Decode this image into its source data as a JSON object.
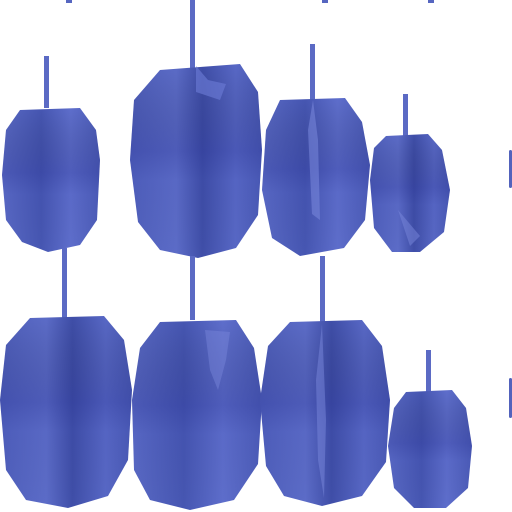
{
  "scene": {
    "background": "#ffffff",
    "colors": {
      "body_light": "#6070cc",
      "body_mid": "#5666c0",
      "body_dark": "#3f4ea8",
      "stem": "#5b6ac4",
      "crease": "#8a96e0"
    },
    "shapes": [
      {
        "name": "lantern-row1-col1",
        "style": "smooth"
      },
      {
        "name": "lantern-row1-col2",
        "style": "faceted"
      },
      {
        "name": "lantern-row1-col3",
        "style": "faceted"
      },
      {
        "name": "lantern-row1-col4",
        "style": "faceted"
      },
      {
        "name": "lantern-row2-col1",
        "style": "faceted"
      },
      {
        "name": "lantern-row2-col2",
        "style": "faceted"
      },
      {
        "name": "lantern-row2-col3",
        "style": "faceted"
      },
      {
        "name": "lantern-row2-col4",
        "style": "faceted"
      }
    ]
  }
}
